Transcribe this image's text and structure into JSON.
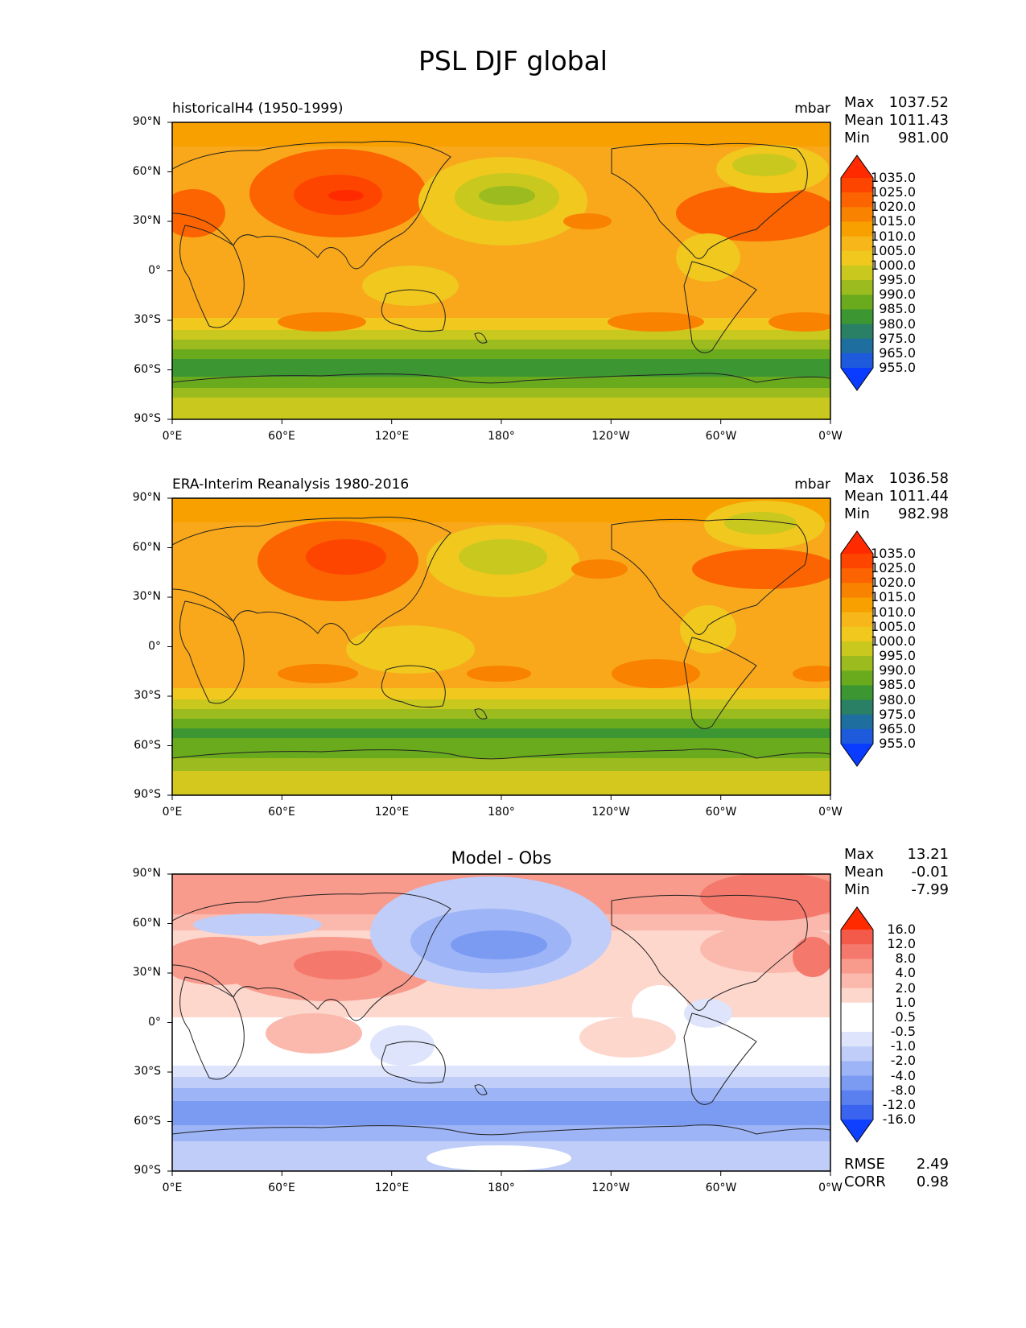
{
  "title": "PSL DJF global",
  "axes": {
    "lat_ticks": [
      "90°N",
      "60°N",
      "30°N",
      "0°",
      "30°S",
      "60°S",
      "90°S"
    ],
    "lon_ticks": [
      "0°E",
      "60°E",
      "120°E",
      "180°",
      "120°W",
      "60°W",
      "0°W"
    ]
  },
  "panels": [
    {
      "title_left": "historicalH4 (1950-1999)",
      "title_right": "mbar",
      "stats": {
        "max_label": "Max",
        "max": "1037.52",
        "mean_label": "Mean",
        "mean": "1011.43",
        "min_label": "Min",
        "min": "981.00"
      },
      "colorbar": {
        "levels": [
          "1035.0",
          "1025.0",
          "1020.0",
          "1015.0",
          "1010.0",
          "1005.0",
          "1000.0",
          "995.0",
          "990.0",
          "985.0",
          "980.0",
          "975.0",
          "965.0",
          "955.0"
        ],
        "colors": [
          "#ff2a00",
          "#fe4500",
          "#fb6400",
          "#f98200",
          "#f7a000",
          "#f7b61a",
          "#f0c81e",
          "#c9c81e",
          "#9cbb1e",
          "#6aab1e",
          "#3c9632",
          "#2a8064",
          "#1e6ea0",
          "#1e5adc",
          "#0a3cff"
        ]
      }
    },
    {
      "title_left": "ERA-Interim Reanalysis 1980-2016",
      "title_right": "mbar",
      "stats": {
        "max_label": "Max",
        "max": "1036.58",
        "mean_label": "Mean",
        "mean": "1011.44",
        "min_label": "Min",
        "min": "982.98"
      },
      "colorbar": {
        "levels": [
          "1035.0",
          "1025.0",
          "1020.0",
          "1015.0",
          "1010.0",
          "1005.0",
          "1000.0",
          "995.0",
          "990.0",
          "985.0",
          "980.0",
          "975.0",
          "965.0",
          "955.0"
        ],
        "colors": [
          "#ff2a00",
          "#fe4500",
          "#fb6400",
          "#f98200",
          "#f7a000",
          "#f7b61a",
          "#f0c81e",
          "#c9c81e",
          "#9cbb1e",
          "#6aab1e",
          "#3c9632",
          "#2a8064",
          "#1e6ea0",
          "#1e5adc",
          "#0a3cff"
        ]
      }
    },
    {
      "title_center": "Model - Obs",
      "stats": {
        "max_label": "Max",
        "max": "13.21",
        "mean_label": "Mean",
        "mean": "-0.01",
        "min_label": "Min",
        "min": "-7.99"
      },
      "colorbar": {
        "levels": [
          "16.0",
          "12.0",
          "8.0",
          "4.0",
          "2.0",
          "1.0",
          "0.5",
          "-0.5",
          "-1.0",
          "-2.0",
          "-4.0",
          "-8.0",
          "-12.0",
          "-16.0"
        ],
        "colors": [
          "#ff2a00",
          "#f45a4a",
          "#f5786c",
          "#f89a8c",
          "#fbb8ac",
          "#fdd6cc",
          "#ffffff",
          "#ffffff",
          "#dde4fb",
          "#bfcdf8",
          "#9db4f6",
          "#7b9bf3",
          "#5a80f0",
          "#3a64f0",
          "#1040ff"
        ]
      },
      "rmse_label": "RMSE",
      "rmse": "2.49",
      "corr_label": "CORR",
      "corr": "0.98"
    }
  ]
}
